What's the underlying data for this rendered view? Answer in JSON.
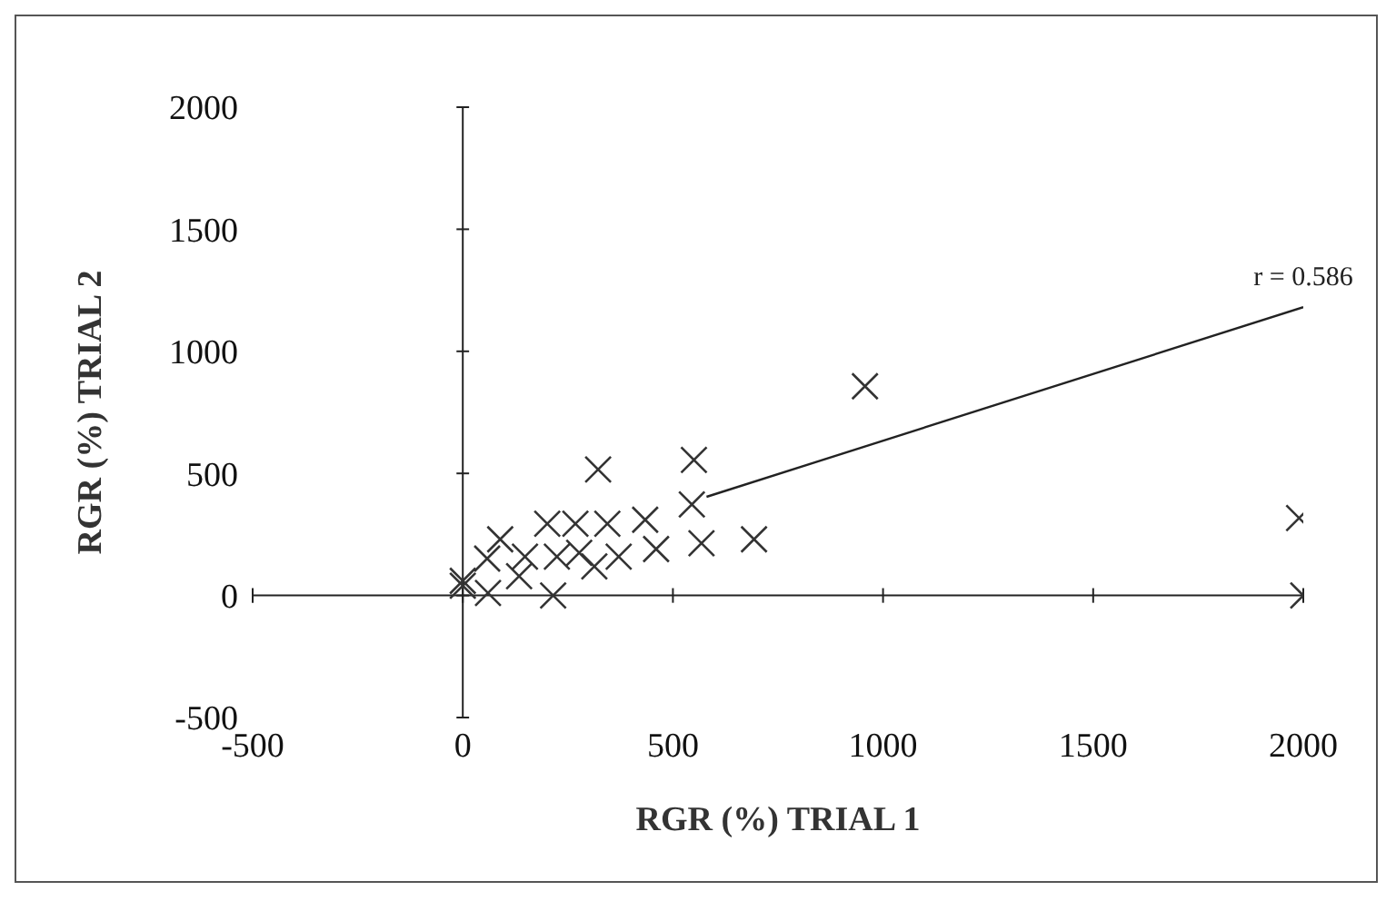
{
  "chart_data": {
    "type": "scatter",
    "xlabel": "RGR (%) TRIAL 1",
    "ylabel": "RGR (%) TRIAL 2",
    "xlim": [
      -500,
      2000
    ],
    "ylim": [
      -500,
      2000
    ],
    "xticks": [
      -500,
      0,
      500,
      1000,
      1500,
      2000
    ],
    "yticks": [
      -500,
      0,
      500,
      1000,
      1500,
      2000
    ],
    "marker": "cross",
    "series": [
      {
        "color": "#333333",
        "x": [
          0,
          0,
          60,
          215,
          322,
          550,
          545,
          568,
          693,
          434,
          460,
          371,
          344,
          268,
          201,
          277,
          224,
          148,
          89,
          58,
          134,
          313,
          957,
          1990,
          2000
        ],
        "values": [
          40,
          60,
          10,
          0,
          516,
          555,
          373,
          214,
          230,
          310,
          190,
          159,
          294,
          294,
          294,
          175,
          159,
          159,
          230,
          151,
          79,
          119,
          857,
          317,
          0
        ]
      },
      {
        "type": "line",
        "color": "#222222",
        "marker": "none",
        "x": [
          580,
          2000
        ],
        "values": [
          404,
          1181
        ]
      }
    ],
    "annotations": [
      {
        "text": "r = 0.586",
        "x": 2000,
        "y": 1181
      }
    ]
  }
}
